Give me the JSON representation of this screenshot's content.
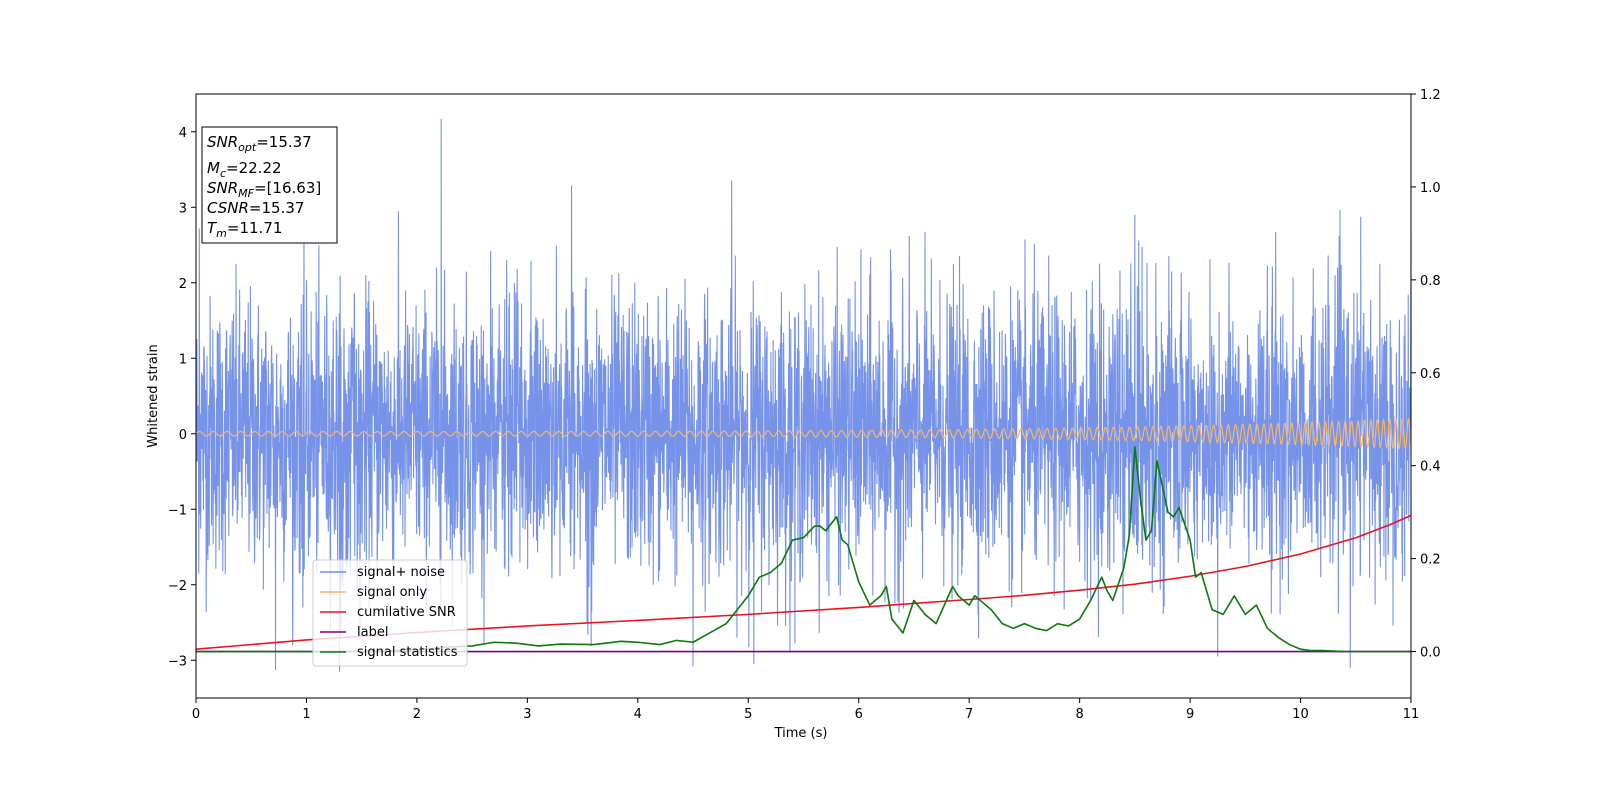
{
  "chart_data": {
    "type": "line",
    "title": "",
    "xlabel": "Time (s)",
    "ylabel": "Whitened strain",
    "xlim": [
      0,
      11
    ],
    "ylim": [
      -3.5,
      4.5
    ],
    "y2lim": [
      -0.1,
      1.2
    ],
    "x_ticks": [
      0,
      1,
      2,
      3,
      4,
      5,
      6,
      7,
      8,
      9,
      10,
      11
    ],
    "y_ticks": [
      -3,
      -2,
      -1,
      0,
      1,
      2,
      3,
      4
    ],
    "y2_ticks": [
      0.0,
      0.2,
      0.4,
      0.6,
      0.8,
      1.0,
      1.2
    ],
    "grid": false,
    "legend_position": "lower-left",
    "annotation": {
      "snr_opt": {
        "base": "SNR",
        "sub": "opt",
        "value": "=15.37"
      },
      "mc": {
        "base": "M",
        "sub": "c",
        "value": "=22.22"
      },
      "snr_mf": {
        "base": "SNR",
        "sub": "MF",
        "value": "=[16.63]"
      },
      "csnr": {
        "base": "CSNR",
        "sub": "",
        "value": "=15.37"
      },
      "tm": {
        "base": "T",
        "sub": "m",
        "value": "=11.71"
      }
    },
    "series": [
      {
        "name": "signal+ noise",
        "axis": "left",
        "color": "#6f8de8",
        "kind": "noise",
        "noise_sigma": 0.9,
        "peaks": [
          [
            0.03,
            2.72
          ],
          [
            0.72,
            -3.13
          ],
          [
            1.3,
            -3.15
          ],
          [
            2.22,
            4.17
          ],
          [
            3.4,
            3.29
          ],
          [
            4.5,
            -3.08
          ],
          [
            4.85,
            3.35
          ],
          [
            5.05,
            -3.05
          ],
          [
            8.5,
            2.9
          ],
          [
            9.25,
            -2.95
          ],
          [
            10.45,
            -3.1
          ],
          [
            11.0,
            2.62
          ]
        ]
      },
      {
        "name": "signal only",
        "axis": "left",
        "color": "#f5b66c",
        "kind": "chirp",
        "amplitude_start": 0.03,
        "amplitude_end": 0.2,
        "frequency_start": 8,
        "frequency_end": 18
      },
      {
        "name": "cumilative SNR",
        "axis": "right",
        "color": "#e8141e",
        "x": [
          0,
          1,
          2,
          3,
          4,
          5,
          6,
          7,
          7.5,
          8,
          8.5,
          9,
          9.5,
          10,
          10.5,
          10.8,
          11
        ],
        "values": [
          0.005,
          0.025,
          0.041,
          0.055,
          0.067,
          0.08,
          0.095,
          0.112,
          0.121,
          0.132,
          0.145,
          0.162,
          0.183,
          0.21,
          0.245,
          0.272,
          0.293
        ]
      },
      {
        "name": "label",
        "axis": "right",
        "color": "#7a008a",
        "x": [
          0,
          11
        ],
        "values": [
          0.0,
          0.0
        ]
      },
      {
        "name": "signal statistics",
        "axis": "right",
        "color": "#0a7a0a",
        "x": [
          0,
          1.5,
          2.0,
          2.3,
          2.5,
          2.7,
          2.9,
          3.1,
          3.3,
          3.6,
          3.85,
          4.0,
          4.2,
          4.35,
          4.5,
          4.65,
          4.8,
          4.9,
          5.0,
          5.1,
          5.2,
          5.3,
          5.4,
          5.5,
          5.6,
          5.65,
          5.7,
          5.8,
          5.85,
          5.9,
          6.0,
          6.1,
          6.2,
          6.25,
          6.3,
          6.4,
          6.5,
          6.6,
          6.7,
          6.85,
          6.9,
          7.0,
          7.05,
          7.1,
          7.2,
          7.3,
          7.4,
          7.5,
          7.6,
          7.7,
          7.8,
          7.9,
          8.0,
          8.1,
          8.2,
          8.25,
          8.3,
          8.4,
          8.45,
          8.5,
          8.55,
          8.6,
          8.65,
          8.7,
          8.8,
          8.85,
          8.9,
          9.0,
          9.05,
          9.1,
          9.2,
          9.3,
          9.4,
          9.5,
          9.6,
          9.7,
          9.8,
          9.9,
          10.0,
          10.1,
          10.2,
          10.4,
          11.0
        ],
        "values": [
          0.0,
          0.0,
          0.004,
          0.01,
          0.012,
          0.02,
          0.018,
          0.012,
          0.016,
          0.015,
          0.022,
          0.02,
          0.015,
          0.024,
          0.02,
          0.04,
          0.06,
          0.09,
          0.12,
          0.16,
          0.17,
          0.19,
          0.24,
          0.245,
          0.27,
          0.27,
          0.26,
          0.29,
          0.24,
          0.23,
          0.15,
          0.1,
          0.12,
          0.14,
          0.07,
          0.04,
          0.11,
          0.08,
          0.06,
          0.14,
          0.12,
          0.1,
          0.12,
          0.11,
          0.09,
          0.06,
          0.05,
          0.06,
          0.05,
          0.045,
          0.06,
          0.055,
          0.07,
          0.11,
          0.16,
          0.13,
          0.11,
          0.18,
          0.25,
          0.44,
          0.33,
          0.24,
          0.26,
          0.41,
          0.3,
          0.29,
          0.31,
          0.24,
          0.16,
          0.17,
          0.09,
          0.08,
          0.12,
          0.08,
          0.1,
          0.05,
          0.03,
          0.015,
          0.005,
          0.002,
          0.002,
          0.0,
          0.0
        ]
      }
    ]
  }
}
